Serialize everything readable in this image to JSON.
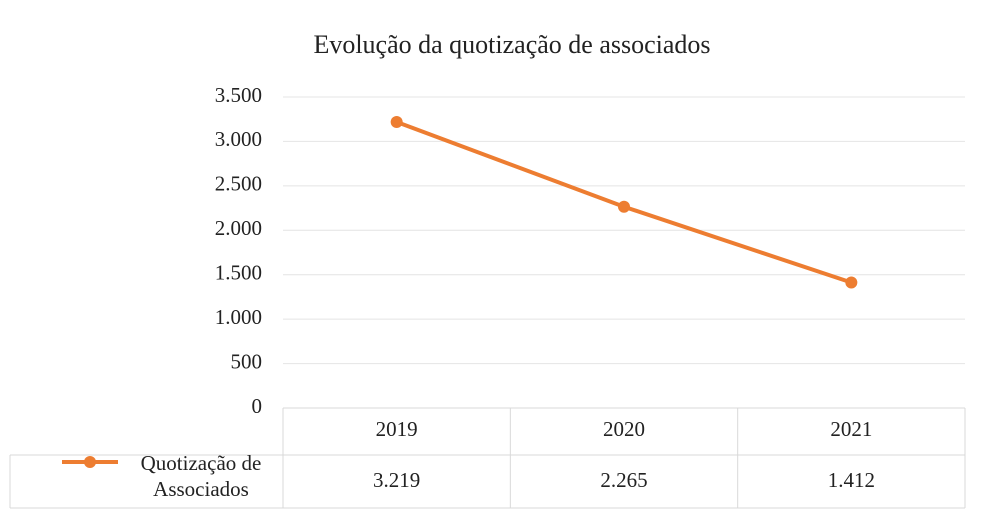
{
  "chart_data": {
    "type": "line",
    "title": "Evolução da quotização de associados",
    "categories": [
      "2019",
      "2020",
      "2021"
    ],
    "series": [
      {
        "name": "Quotização de Associados",
        "color": "#ed7d31",
        "values": [
          3219,
          2265,
          1412
        ],
        "value_labels": [
          "3.219",
          "2.265",
          "1.412"
        ]
      }
    ],
    "ylim": [
      0,
      3500
    ],
    "yticks": [
      0,
      500,
      {
        "value": 1000,
        "label": "1.000"
      },
      {
        "value": 1500,
        "label": "1.500"
      },
      {
        "value": 2000,
        "label": "2.000"
      },
      {
        "value": 2500,
        "label": "2.500"
      },
      {
        "value": 3000,
        "label": "3.000"
      },
      {
        "value": 3500,
        "label": "3.500"
      }
    ],
    "grid": true,
    "data_table": true
  }
}
